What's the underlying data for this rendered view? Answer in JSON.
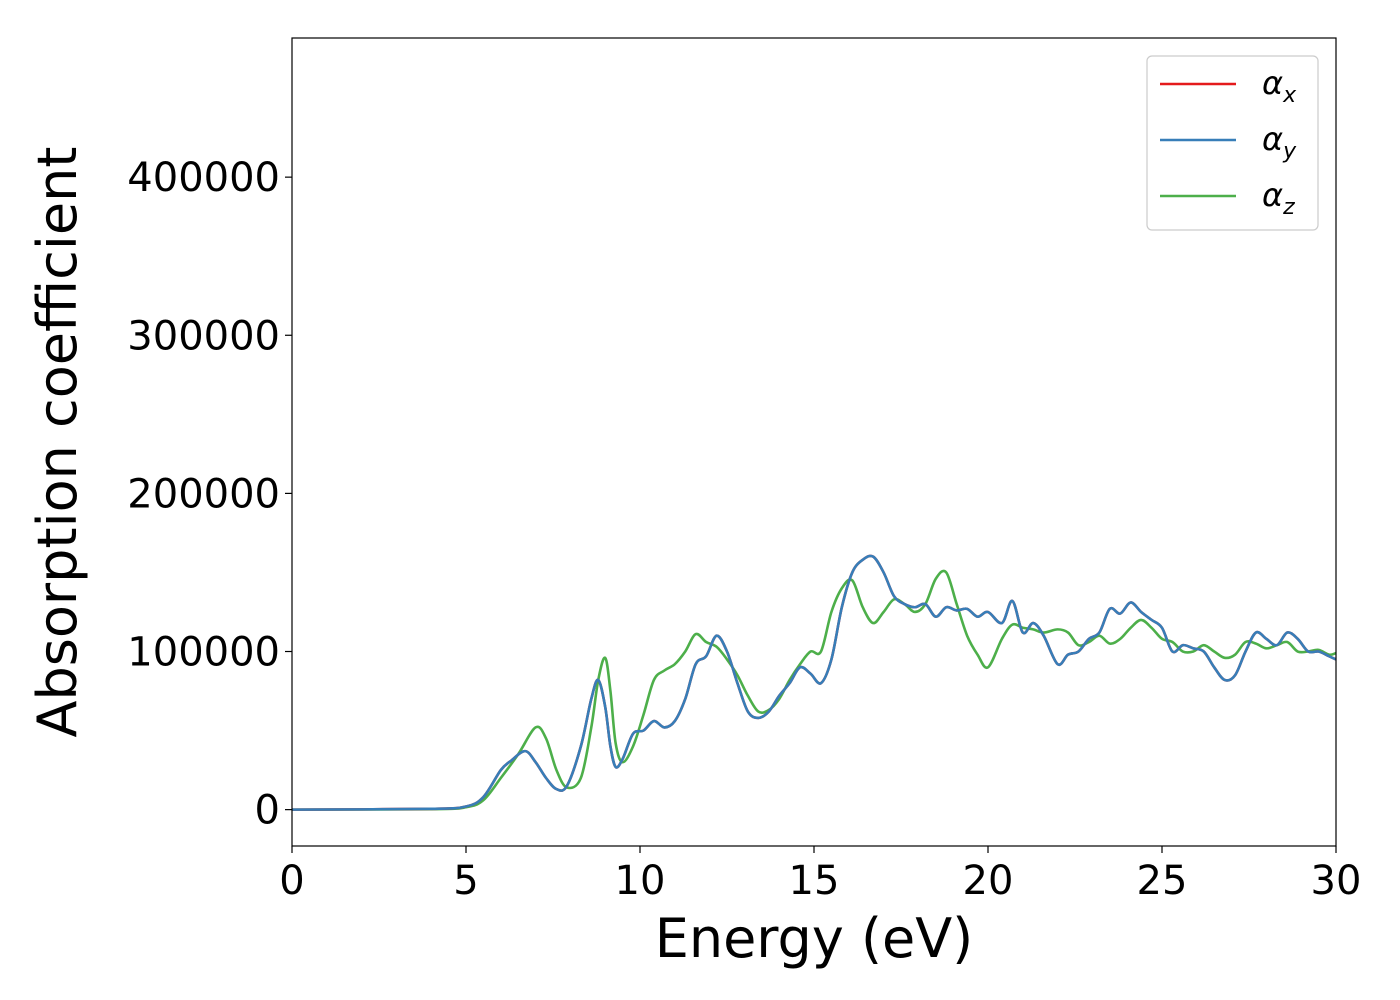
{
  "chart_data": {
    "type": "line",
    "title": "",
    "xlabel": "Energy (eV)",
    "ylabel": "Absorption coefficient",
    "xlim": [
      0,
      30
    ],
    "ylim": [
      -23000,
      488000
    ],
    "xticks": [
      0,
      5,
      10,
      15,
      20,
      25,
      30
    ],
    "xtick_labels": [
      "0",
      "5",
      "10",
      "15",
      "20",
      "25",
      "30"
    ],
    "yticks": [
      0,
      100000,
      200000,
      300000,
      400000
    ],
    "ytick_labels": [
      "0",
      "100000",
      "200000",
      "300000",
      "400000"
    ],
    "grid": false,
    "legend_position": "top-right",
    "series": [
      {
        "name": "α_x",
        "legend_main": "α",
        "legend_sub": "x",
        "color": "#e41a1c",
        "x": [
          0,
          4,
          5,
          5.5,
          6,
          6.3,
          6.7,
          7.0,
          7.3,
          7.6,
          7.9,
          8.3,
          8.6,
          8.8,
          9.0,
          9.15,
          9.3,
          9.5,
          9.8,
          10.1,
          10.4,
          10.7,
          11.0,
          11.3,
          11.6,
          11.9,
          12.2,
          12.5,
          12.8,
          13.1,
          13.4,
          13.7,
          14.0,
          14.3,
          14.6,
          14.9,
          15.2,
          15.5,
          15.8,
          16.1,
          16.4,
          16.7,
          17.0,
          17.3,
          17.6,
          17.9,
          18.2,
          18.5,
          18.8,
          19.1,
          19.4,
          19.7,
          20.0,
          20.4,
          20.7,
          21.0,
          21.3,
          21.6,
          22.0,
          22.3,
          22.6,
          22.9,
          23.2,
          23.5,
          23.8,
          24.1,
          24.4,
          24.7,
          25.0,
          25.3,
          25.6,
          25.9,
          26.2,
          26.5,
          26.8,
          27.1,
          27.4,
          27.7,
          28.0,
          28.3,
          28.6,
          28.9,
          29.2,
          29.5,
          29.8,
          30.0
        ],
        "y": [
          0,
          500,
          2000,
          8000,
          25000,
          31000,
          37000,
          30000,
          20000,
          13000,
          15000,
          40000,
          70000,
          82000,
          65000,
          40000,
          27000,
          32000,
          48000,
          50000,
          56000,
          52000,
          56000,
          70000,
          92000,
          97000,
          110000,
          100000,
          80000,
          62000,
          58000,
          62000,
          72000,
          80000,
          90000,
          86000,
          80000,
          95000,
          128000,
          150000,
          158000,
          160000,
          150000,
          135000,
          130000,
          128000,
          130000,
          122000,
          128000,
          126000,
          127000,
          122000,
          125000,
          118000,
          132000,
          112000,
          118000,
          110000,
          92000,
          98000,
          100000,
          108000,
          112000,
          127000,
          124000,
          131000,
          125000,
          120000,
          115000,
          100000,
          104000,
          102000,
          100000,
          90000,
          82000,
          85000,
          100000,
          112000,
          108000,
          104000,
          112000,
          108000,
          100000,
          100000,
          97000,
          95000
        ]
      },
      {
        "name": "α_y",
        "legend_main": "α",
        "legend_sub": "y",
        "color": "#377eb8",
        "x": [
          0,
          4,
          5,
          5.5,
          6,
          6.3,
          6.7,
          7.0,
          7.3,
          7.6,
          7.9,
          8.3,
          8.6,
          8.8,
          9.0,
          9.15,
          9.3,
          9.5,
          9.8,
          10.1,
          10.4,
          10.7,
          11.0,
          11.3,
          11.6,
          11.9,
          12.2,
          12.5,
          12.8,
          13.1,
          13.4,
          13.7,
          14.0,
          14.3,
          14.6,
          14.9,
          15.2,
          15.5,
          15.8,
          16.1,
          16.4,
          16.7,
          17.0,
          17.3,
          17.6,
          17.9,
          18.2,
          18.5,
          18.8,
          19.1,
          19.4,
          19.7,
          20.0,
          20.4,
          20.7,
          21.0,
          21.3,
          21.6,
          22.0,
          22.3,
          22.6,
          22.9,
          23.2,
          23.5,
          23.8,
          24.1,
          24.4,
          24.7,
          25.0,
          25.3,
          25.6,
          25.9,
          26.2,
          26.5,
          26.8,
          27.1,
          27.4,
          27.7,
          28.0,
          28.3,
          28.6,
          28.9,
          29.2,
          29.5,
          29.8,
          30.0
        ],
        "y": [
          0,
          500,
          2000,
          8000,
          25000,
          31000,
          37000,
          30000,
          20000,
          13000,
          15000,
          40000,
          70000,
          82000,
          65000,
          40000,
          27000,
          32000,
          48000,
          50000,
          56000,
          52000,
          56000,
          70000,
          92000,
          97000,
          110000,
          100000,
          80000,
          62000,
          58000,
          62000,
          72000,
          80000,
          90000,
          86000,
          80000,
          95000,
          128000,
          150000,
          158000,
          160000,
          150000,
          135000,
          130000,
          128000,
          130000,
          122000,
          128000,
          126000,
          127000,
          122000,
          125000,
          118000,
          132000,
          112000,
          118000,
          110000,
          92000,
          98000,
          100000,
          108000,
          112000,
          127000,
          124000,
          131000,
          125000,
          120000,
          115000,
          100000,
          104000,
          102000,
          100000,
          90000,
          82000,
          85000,
          100000,
          112000,
          108000,
          104000,
          112000,
          108000,
          100000,
          100000,
          97000,
          95000
        ]
      },
      {
        "name": "α_z",
        "legend_main": "α",
        "legend_sub": "z",
        "color": "#4daf4a",
        "x": [
          0,
          4,
          5,
          5.5,
          6,
          6.5,
          7.0,
          7.3,
          7.6,
          7.9,
          8.3,
          8.6,
          8.8,
          9.0,
          9.15,
          9.3,
          9.5,
          9.8,
          10.1,
          10.4,
          10.7,
          11.0,
          11.3,
          11.6,
          11.9,
          12.2,
          12.5,
          12.8,
          13.1,
          13.4,
          13.7,
          14.0,
          14.3,
          14.6,
          14.9,
          15.2,
          15.5,
          15.8,
          16.1,
          16.4,
          16.7,
          17.0,
          17.3,
          17.6,
          17.9,
          18.2,
          18.5,
          18.8,
          19.1,
          19.4,
          19.7,
          20.0,
          20.4,
          20.7,
          21.0,
          21.3,
          21.6,
          22.0,
          22.3,
          22.6,
          22.9,
          23.2,
          23.5,
          23.8,
          24.1,
          24.4,
          24.7,
          25.0,
          25.3,
          25.6,
          25.9,
          26.2,
          26.5,
          26.8,
          27.1,
          27.4,
          27.7,
          28.0,
          28.3,
          28.6,
          28.9,
          29.2,
          29.5,
          29.8,
          30.0
        ],
        "y": [
          0,
          300,
          1500,
          6000,
          20000,
          35000,
          52000,
          45000,
          25000,
          14000,
          20000,
          52000,
          82000,
          96000,
          75000,
          42000,
          30000,
          40000,
          60000,
          82000,
          88000,
          92000,
          100000,
          111000,
          106000,
          103000,
          95000,
          85000,
          72000,
          62000,
          63000,
          70000,
          82000,
          92000,
          100000,
          100000,
          125000,
          140000,
          145000,
          128000,
          118000,
          125000,
          133000,
          130000,
          125000,
          130000,
          146000,
          150000,
          130000,
          110000,
          98000,
          90000,
          108000,
          117000,
          115000,
          114000,
          112000,
          114000,
          112000,
          104000,
          106000,
          110000,
          105000,
          108000,
          115000,
          120000,
          115000,
          108000,
          106000,
          100000,
          100000,
          104000,
          100000,
          96000,
          98000,
          106000,
          105000,
          102000,
          104000,
          106000,
          100000,
          100000,
          101000,
          98000,
          99000
        ]
      }
    ]
  }
}
